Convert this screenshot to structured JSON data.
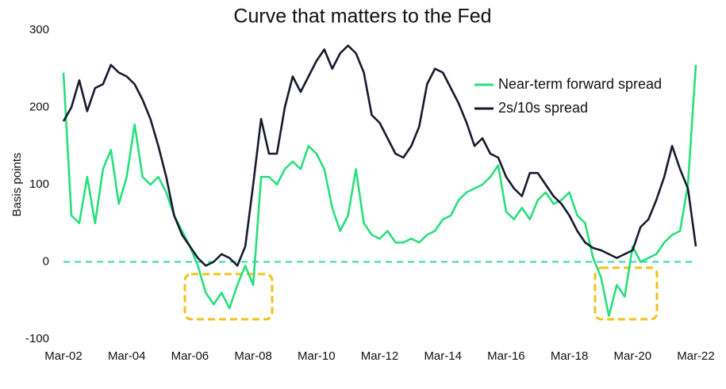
{
  "chart_data": {
    "type": "line",
    "title": "Curve that matters to the Fed",
    "y_label": "Basis points",
    "categories": [
      "Mar-02",
      null,
      null,
      null,
      null,
      null,
      null,
      null,
      "Mar-04",
      null,
      null,
      null,
      null,
      null,
      null,
      null,
      "Mar-06",
      null,
      null,
      null,
      null,
      null,
      null,
      null,
      "Mar-08",
      null,
      null,
      null,
      null,
      null,
      null,
      null,
      "Mar-10",
      null,
      null,
      null,
      null,
      null,
      null,
      null,
      "Mar-12",
      null,
      null,
      null,
      null,
      null,
      null,
      null,
      "Mar-14",
      null,
      null,
      null,
      null,
      null,
      null,
      null,
      "Mar-16",
      null,
      null,
      null,
      null,
      null,
      null,
      null,
      "Mar-18",
      null,
      null,
      null,
      null,
      null,
      null,
      null,
      "Mar-20",
      null,
      null,
      null,
      null,
      null,
      null,
      null,
      "Mar-22"
    ],
    "series": [
      {
        "name": "Near-term forward spread",
        "color": "#27df7c",
        "values": [
          245,
          60,
          50,
          110,
          50,
          120,
          145,
          75,
          110,
          178,
          110,
          100,
          110,
          90,
          60,
          40,
          20,
          -5,
          -40,
          -55,
          -40,
          -60,
          -30,
          -5,
          -30,
          110,
          110,
          100,
          120,
          130,
          120,
          150,
          140,
          120,
          70,
          40,
          60,
          120,
          50,
          35,
          30,
          40,
          25,
          25,
          30,
          25,
          35,
          40,
          55,
          60,
          80,
          90,
          95,
          100,
          110,
          125,
          65,
          55,
          70,
          55,
          80,
          90,
          75,
          80,
          90,
          60,
          50,
          5,
          -20,
          -70,
          -30,
          -45,
          20,
          0,
          5,
          10,
          25,
          35,
          40,
          100,
          255
        ]
      },
      {
        "name": "2s/10s spread",
        "color": "#171a2e",
        "values": [
          182,
          200,
          235,
          195,
          225,
          230,
          255,
          245,
          240,
          230,
          210,
          185,
          150,
          110,
          60,
          35,
          20,
          5,
          -5,
          0,
          10,
          5,
          -5,
          20,
          100,
          185,
          140,
          140,
          200,
          240,
          220,
          240,
          260,
          275,
          250,
          270,
          280,
          270,
          245,
          190,
          180,
          160,
          140,
          135,
          150,
          175,
          230,
          250,
          245,
          225,
          205,
          180,
          150,
          160,
          140,
          135,
          110,
          95,
          85,
          115,
          115,
          100,
          85,
          75,
          60,
          40,
          25,
          18,
          15,
          10,
          5,
          10,
          15,
          45,
          55,
          80,
          110,
          150,
          120,
          95,
          20
        ]
      }
    ],
    "ylim": [
      -100,
      300
    ],
    "yticks": [
      -100,
      0,
      100,
      200,
      300
    ],
    "zero_line_color": "#2fd6b4",
    "legend": "upper-right"
  }
}
